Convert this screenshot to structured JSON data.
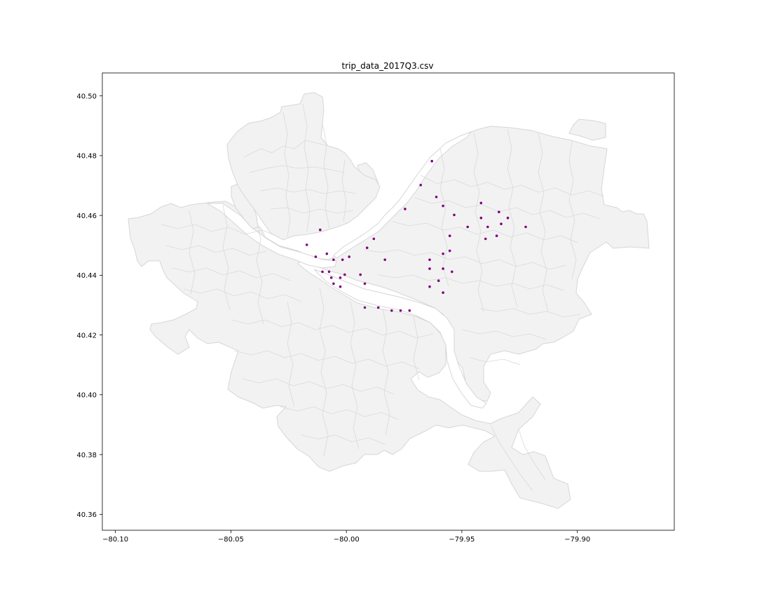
{
  "title": "trip_data_2017Q3.csv",
  "chart_data": {
    "type": "scatter",
    "title": "trip_data_2017Q3.csv",
    "xlabel": "",
    "ylabel": "",
    "xlim": [
      -80.1035,
      -79.8475
    ],
    "ylim": [
      40.3545,
      40.5075
    ],
    "xticks": [
      -80.1,
      -80.05,
      -80.0,
      -79.95,
      -79.9
    ],
    "xtick_labels": [
      "−80.10",
      "−80.05",
      "−80.00",
      "−79.95",
      "−79.90"
    ],
    "yticks": [
      40.36,
      40.38,
      40.4,
      40.42,
      40.44,
      40.46,
      40.48,
      40.5
    ],
    "ytick_labels": [
      "40.36",
      "40.38",
      "40.40",
      "40.42",
      "40.44",
      "40.46",
      "40.48",
      "40.50"
    ],
    "grid": false,
    "marker_color": "#800080",
    "basemap_fill": "#f2f2f2",
    "basemap_edge": "#d6d6d6",
    "basemap": "city neighborhood boundaries",
    "points": [
      [
        -79.956,
        40.478
      ],
      [
        -79.961,
        40.47
      ],
      [
        -79.954,
        40.466
      ],
      [
        -79.968,
        40.462
      ],
      [
        -79.951,
        40.463
      ],
      [
        -79.946,
        40.46
      ],
      [
        -79.934,
        40.464
      ],
      [
        -79.926,
        40.461
      ],
      [
        -79.934,
        40.459
      ],
      [
        -79.922,
        40.459
      ],
      [
        -79.925,
        40.457
      ],
      [
        -79.914,
        40.456
      ],
      [
        -79.931,
        40.456
      ],
      [
        -79.94,
        40.456
      ],
      [
        -79.948,
        40.453
      ],
      [
        -79.927,
        40.453
      ],
      [
        -79.932,
        40.452
      ],
      [
        -79.948,
        40.448
      ],
      [
        -79.951,
        40.447
      ],
      [
        -79.957,
        40.445
      ],
      [
        -79.957,
        40.442
      ],
      [
        -79.951,
        40.442
      ],
      [
        -79.947,
        40.441
      ],
      [
        -79.953,
        40.438
      ],
      [
        -79.957,
        40.436
      ],
      [
        -79.951,
        40.434
      ],
      [
        -80.006,
        40.455
      ],
      [
        -80.012,
        40.45
      ],
      [
        -79.982,
        40.452
      ],
      [
        -79.985,
        40.449
      ],
      [
        -79.977,
        40.445
      ],
      [
        -80.003,
        40.447
      ],
      [
        -80.008,
        40.446
      ],
      [
        -79.993,
        40.446
      ],
      [
        -80.0,
        40.445
      ],
      [
        -79.996,
        40.445
      ],
      [
        -80.005,
        40.441
      ],
      [
        -80.002,
        40.441
      ],
      [
        -79.995,
        40.44
      ],
      [
        -79.988,
        40.44
      ],
      [
        -80.001,
        40.439
      ],
      [
        -79.997,
        40.439
      ],
      [
        -80.0,
        40.437
      ],
      [
        -79.986,
        40.437
      ],
      [
        -79.997,
        40.436
      ],
      [
        -79.986,
        40.429
      ],
      [
        -79.98,
        40.429
      ],
      [
        -79.974,
        40.428
      ],
      [
        -79.97,
        40.428
      ],
      [
        -79.966,
        40.428
      ]
    ]
  }
}
